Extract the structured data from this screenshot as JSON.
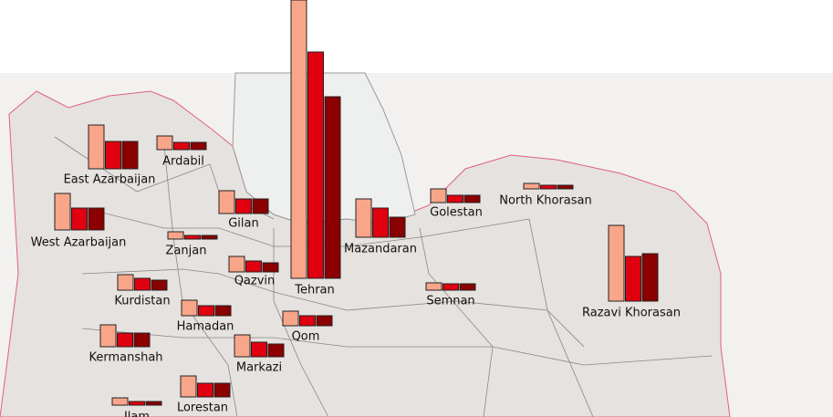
{
  "provinces": [
    {
      "name": "East Azarbaijan",
      "values": [
        48,
        30,
        30
      ]
    },
    {
      "name": "Ardabil",
      "values": [
        15,
        8,
        8
      ]
    },
    {
      "name": "West Azarbaijan",
      "values": [
        40,
        24,
        24
      ]
    },
    {
      "name": "Gilan",
      "values": [
        25,
        16,
        16
      ]
    },
    {
      "name": "Zanjan",
      "values": [
        8,
        4,
        4
      ]
    },
    {
      "name": "Qazvin",
      "values": [
        17,
        12,
        10
      ]
    },
    {
      "name": "Tehran",
      "values": [
        305,
        248,
        199
      ]
    },
    {
      "name": "Mazandaran",
      "values": [
        42,
        32,
        22
      ]
    },
    {
      "name": "Golestan",
      "values": [
        15,
        8,
        8
      ]
    },
    {
      "name": "North Khorasan",
      "values": [
        6,
        4,
        4
      ]
    },
    {
      "name": "Kurdistan",
      "values": [
        17,
        13,
        11
      ]
    },
    {
      "name": "Semnan",
      "values": [
        8,
        7,
        7
      ]
    },
    {
      "name": "Razavi Khorasan",
      "values": [
        83,
        49,
        52
      ]
    },
    {
      "name": "Hamadan",
      "values": [
        17,
        11,
        11
      ]
    },
    {
      "name": "Qom",
      "values": [
        16,
        11,
        11
      ]
    },
    {
      "name": "Kermanshah",
      "values": [
        24,
        15,
        15
      ]
    },
    {
      "name": "Markazi",
      "values": [
        24,
        16,
        14
      ]
    },
    {
      "name": "Lorestan",
      "values": [
        23,
        15,
        15
      ]
    },
    {
      "name": "Ilam",
      "values": [
        8,
        4,
        4
      ]
    }
  ],
  "bar_colors": [
    "#f9a58a",
    "#e0000f",
    "#8b0000"
  ]
}
